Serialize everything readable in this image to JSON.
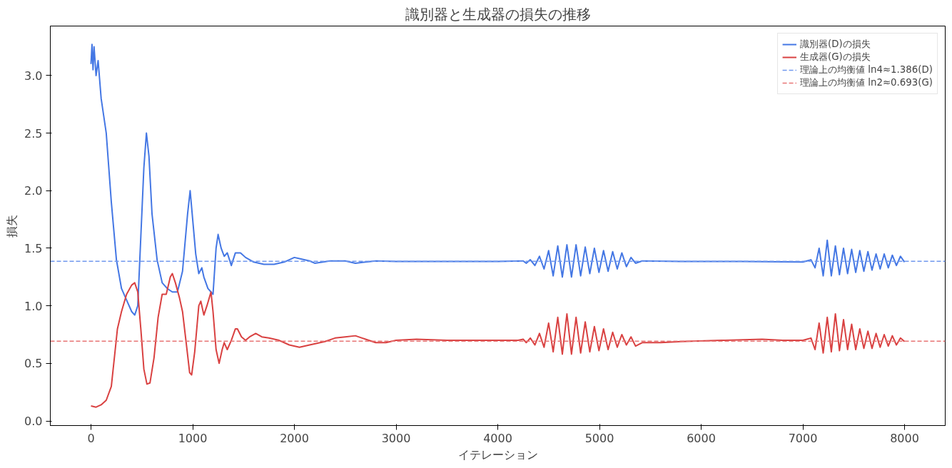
{
  "chart_data": {
    "type": "line",
    "title": "識別器と生成器の損失の推移",
    "xlabel": "イテレーション",
    "ylabel": "損失",
    "xlim": [
      -400,
      8400
    ],
    "ylim": [
      -0.04,
      3.43
    ],
    "xticks": [
      0,
      1000,
      2000,
      3000,
      4000,
      5000,
      6000,
      7000,
      8000
    ],
    "yticks": [
      {
        "value": 0,
        "label": "0.0"
      },
      0.5,
      {
        "value": 1,
        "label": "1.0"
      },
      1.5,
      {
        "value": 2,
        "label": "2.0"
      },
      2.5,
      {
        "value": 3,
        "label": "3.0"
      }
    ],
    "grid": false,
    "legend": "top right",
    "line_style": "solid",
    "series": [
      {
        "name": "識別器(D)の損失",
        "color": "#4477e4",
        "x": [
          0,
          10,
          20,
          30,
          50,
          70,
          100,
          150,
          200,
          250,
          300,
          350,
          400,
          430,
          460,
          490,
          520,
          545,
          570,
          600,
          650,
          700,
          750,
          800,
          850,
          900,
          950,
          975,
          1000,
          1030,
          1060,
          1090,
          1110,
          1150,
          1200,
          1230,
          1250,
          1280,
          1310,
          1340,
          1380,
          1420,
          1470,
          1520,
          1600,
          1700,
          1800,
          1900,
          2000,
          2050,
          2150,
          2200,
          2350,
          2500,
          2600,
          2800,
          3000,
          3500,
          4000,
          4250,
          4280,
          4320,
          4365,
          4410,
          4455,
          4500,
          4545,
          4590,
          4635,
          4680,
          4725,
          4770,
          4815,
          4860,
          4905,
          4950,
          4995,
          5040,
          5085,
          5130,
          5175,
          5220,
          5265,
          5310,
          5355,
          5420,
          5800,
          6400,
          7000,
          7040,
          7080,
          7120,
          7160,
          7200,
          7240,
          7280,
          7320,
          7360,
          7400,
          7440,
          7480,
          7520,
          7560,
          7600,
          7640,
          7680,
          7720,
          7760,
          7800,
          7840,
          7880,
          7920,
          7960,
          8000
        ],
        "values": [
          3.1,
          3.27,
          3.05,
          3.25,
          3.0,
          3.13,
          2.8,
          2.5,
          1.9,
          1.4,
          1.15,
          1.05,
          0.95,
          0.92,
          1.0,
          1.6,
          2.2,
          2.5,
          2.3,
          1.8,
          1.4,
          1.2,
          1.15,
          1.12,
          1.12,
          1.3,
          1.8,
          2.0,
          1.75,
          1.45,
          1.28,
          1.33,
          1.25,
          1.15,
          1.1,
          1.5,
          1.62,
          1.5,
          1.43,
          1.46,
          1.35,
          1.46,
          1.46,
          1.42,
          1.38,
          1.36,
          1.36,
          1.38,
          1.42,
          1.41,
          1.39,
          1.37,
          1.39,
          1.39,
          1.37,
          1.39,
          1.385,
          1.385,
          1.385,
          1.39,
          1.37,
          1.4,
          1.35,
          1.43,
          1.32,
          1.48,
          1.26,
          1.52,
          1.25,
          1.53,
          1.25,
          1.53,
          1.26,
          1.51,
          1.28,
          1.5,
          1.29,
          1.48,
          1.3,
          1.47,
          1.32,
          1.46,
          1.34,
          1.42,
          1.37,
          1.39,
          1.385,
          1.385,
          1.38,
          1.39,
          1.4,
          1.33,
          1.5,
          1.26,
          1.57,
          1.26,
          1.52,
          1.27,
          1.5,
          1.28,
          1.49,
          1.29,
          1.48,
          1.3,
          1.47,
          1.31,
          1.45,
          1.32,
          1.45,
          1.33,
          1.44,
          1.35,
          1.43,
          1.38
        ]
      },
      {
        "name": "生成器(G)の損失",
        "color": "#d94141",
        "x": [
          0,
          50,
          100,
          150,
          200,
          230,
          260,
          300,
          350,
          400,
          430,
          460,
          490,
          520,
          550,
          580,
          620,
          660,
          700,
          740,
          780,
          800,
          830,
          870,
          900,
          940,
          970,
          990,
          1020,
          1060,
          1080,
          1110,
          1140,
          1180,
          1200,
          1230,
          1260,
          1290,
          1310,
          1340,
          1380,
          1420,
          1440,
          1480,
          1520,
          1560,
          1620,
          1680,
          1750,
          1850,
          1950,
          2050,
          2150,
          2300,
          2400,
          2500,
          2600,
          2700,
          2800,
          2900,
          3000,
          3200,
          3500,
          3800,
          4100,
          4200,
          4250,
          4280,
          4320,
          4365,
          4410,
          4455,
          4500,
          4545,
          4590,
          4635,
          4680,
          4725,
          4770,
          4815,
          4860,
          4905,
          4950,
          4995,
          5040,
          5085,
          5130,
          5175,
          5220,
          5265,
          5310,
          5355,
          5420,
          5600,
          5800,
          6200,
          6600,
          6800,
          7000,
          7040,
          7080,
          7120,
          7160,
          7200,
          7240,
          7280,
          7320,
          7360,
          7400,
          7440,
          7480,
          7520,
          7560,
          7600,
          7640,
          7680,
          7720,
          7760,
          7800,
          7840,
          7880,
          7920,
          7960,
          8000
        ],
        "values": [
          0.13,
          0.12,
          0.14,
          0.18,
          0.3,
          0.55,
          0.8,
          0.95,
          1.1,
          1.18,
          1.2,
          1.12,
          0.8,
          0.45,
          0.32,
          0.33,
          0.55,
          0.9,
          1.1,
          1.1,
          1.25,
          1.28,
          1.2,
          1.07,
          0.95,
          0.65,
          0.42,
          0.4,
          0.6,
          1.0,
          1.04,
          0.92,
          1.0,
          1.12,
          0.95,
          0.62,
          0.5,
          0.62,
          0.68,
          0.62,
          0.7,
          0.8,
          0.8,
          0.73,
          0.7,
          0.73,
          0.76,
          0.73,
          0.72,
          0.7,
          0.66,
          0.64,
          0.66,
          0.69,
          0.72,
          0.73,
          0.74,
          0.71,
          0.68,
          0.68,
          0.7,
          0.71,
          0.7,
          0.7,
          0.7,
          0.7,
          0.71,
          0.68,
          0.72,
          0.66,
          0.76,
          0.64,
          0.85,
          0.6,
          0.9,
          0.58,
          0.93,
          0.58,
          0.9,
          0.59,
          0.86,
          0.6,
          0.82,
          0.61,
          0.8,
          0.62,
          0.77,
          0.64,
          0.75,
          0.66,
          0.73,
          0.65,
          0.68,
          0.68,
          0.69,
          0.7,
          0.71,
          0.7,
          0.7,
          0.71,
          0.72,
          0.62,
          0.85,
          0.59,
          0.9,
          0.6,
          0.93,
          0.61,
          0.88,
          0.62,
          0.84,
          0.62,
          0.8,
          0.63,
          0.78,
          0.63,
          0.76,
          0.64,
          0.75,
          0.65,
          0.74,
          0.66,
          0.72,
          0.69
        ]
      }
    ],
    "ref_lines": [
      {
        "axis": "y",
        "value": 1.386,
        "label": "理論上の均衡値 ln4≈1.386(D)",
        "color": "#7098ee",
        "line_style": "dashed"
      },
      {
        "axis": "y",
        "value": 0.693,
        "label": "理論上の均衡値 ln2≈0.693(G)",
        "color": "#e77474",
        "line_style": "dashed"
      }
    ]
  }
}
